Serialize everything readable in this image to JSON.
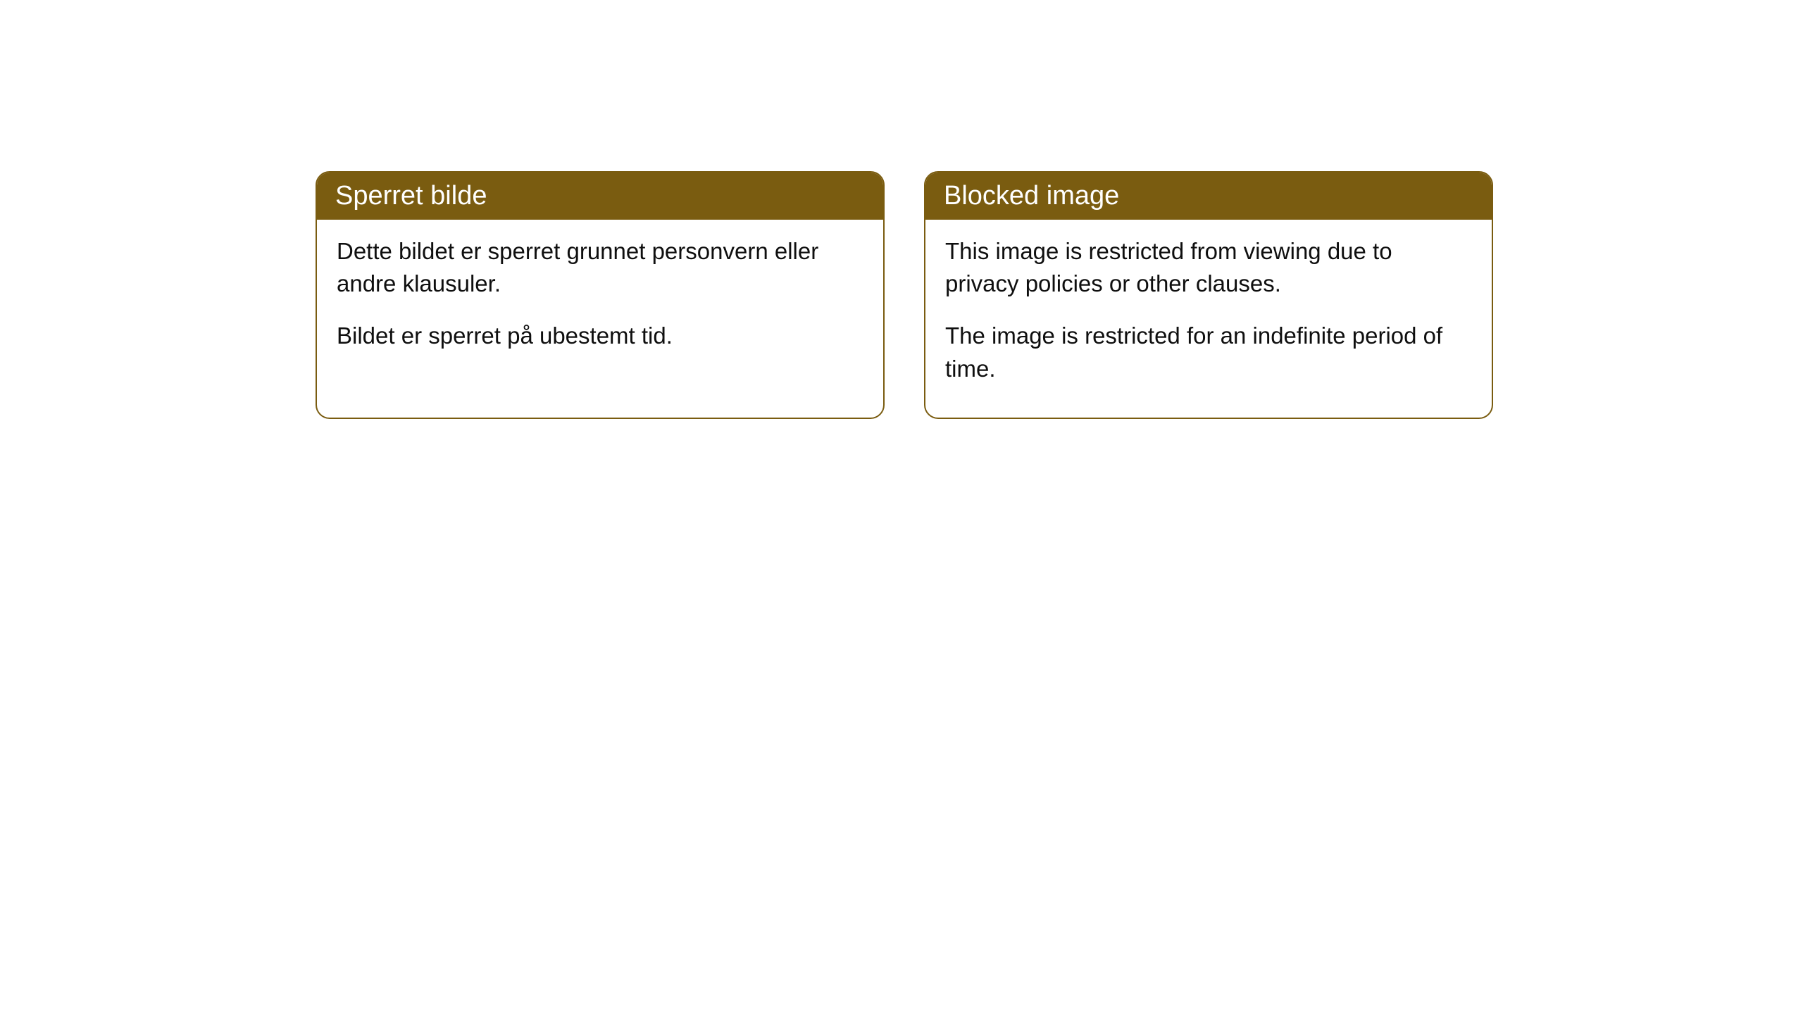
{
  "cards": [
    {
      "title": "Sperret bilde",
      "paragraph1": "Dette bildet er sperret grunnet personvern eller andre klausuler.",
      "paragraph2": "Bildet er sperret på ubestemt tid."
    },
    {
      "title": "Blocked image",
      "paragraph1": "This image is restricted from viewing due to privacy policies or other clauses.",
      "paragraph2": "The image is restricted for an indefinite period of time."
    }
  ],
  "styling": {
    "header_background_color": "#7a5c10",
    "header_text_color": "#ffffff",
    "card_border_color": "#7a5c10",
    "card_background_color": "#ffffff",
    "body_text_color": "#0f0f0f",
    "page_background_color": "#ffffff",
    "border_radius": 20,
    "header_fontsize": 38,
    "body_fontsize": 33
  }
}
